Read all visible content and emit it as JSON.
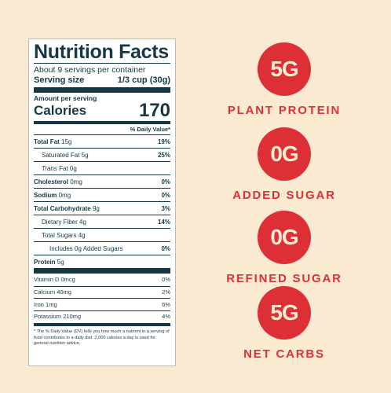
{
  "label": {
    "title": "Nutrition Facts",
    "servings_per_container": "About 9 servings per container",
    "serving_size_label": "Serving size",
    "serving_size_value": "1/3 cup (30g)",
    "amount_per_serving": "Amount per serving",
    "calories_label": "Calories",
    "calories_value": "170",
    "daily_value_header": "% Daily Value*",
    "nutrients": [
      {
        "name": "Total Fat",
        "amount": "15g",
        "dv": "19%"
      },
      {
        "name": "Saturated Fat",
        "amount": "5g",
        "dv": "25%"
      },
      {
        "name": "Trans",
        "name_rest": "Fat",
        "amount": "0g",
        "dv": ""
      },
      {
        "name": "Cholesterol",
        "amount": "0mg",
        "dv": "0%"
      },
      {
        "name": "Sodium",
        "amount": "0mg",
        "dv": "0%"
      },
      {
        "name": "Total Carbohydrate",
        "amount": "9g",
        "dv": "3%"
      },
      {
        "name": "Dietary Fiber",
        "amount": "4g",
        "dv": "14%"
      },
      {
        "name": "Total Sugars",
        "amount": "4g",
        "dv": ""
      },
      {
        "name": "Includes 0g Added Sugars",
        "amount": "",
        "dv": "0%"
      },
      {
        "name": "Protein",
        "amount": "5g",
        "dv": ""
      }
    ],
    "vitamins": [
      {
        "name": "Vitamin D",
        "amount": "0mcg",
        "dv": "0%"
      },
      {
        "name": "Calcium",
        "amount": "40mg",
        "dv": "2%"
      },
      {
        "name": "Iron",
        "amount": "1mg",
        "dv": "6%"
      },
      {
        "name": "Potassium",
        "amount": "210mg",
        "dv": "4%"
      }
    ],
    "footnote": "* The % Daily Value (DV) tells you how much a nutrient in a serving of food contributes to a daily diet. 2,000 calories a day is used for general nutrition advice."
  },
  "claims": [
    {
      "value": "5G",
      "text": "PLANT PROTEIN"
    },
    {
      "value": "0G",
      "text": "ADDED SUGAR"
    },
    {
      "value": "0G",
      "text": "REFINED SUGAR"
    },
    {
      "value": "5G",
      "text": "NET CARBS"
    }
  ],
  "colors": {
    "background": "#fbead2",
    "label_ink": "#163845",
    "accent_red": "#dc3036"
  }
}
